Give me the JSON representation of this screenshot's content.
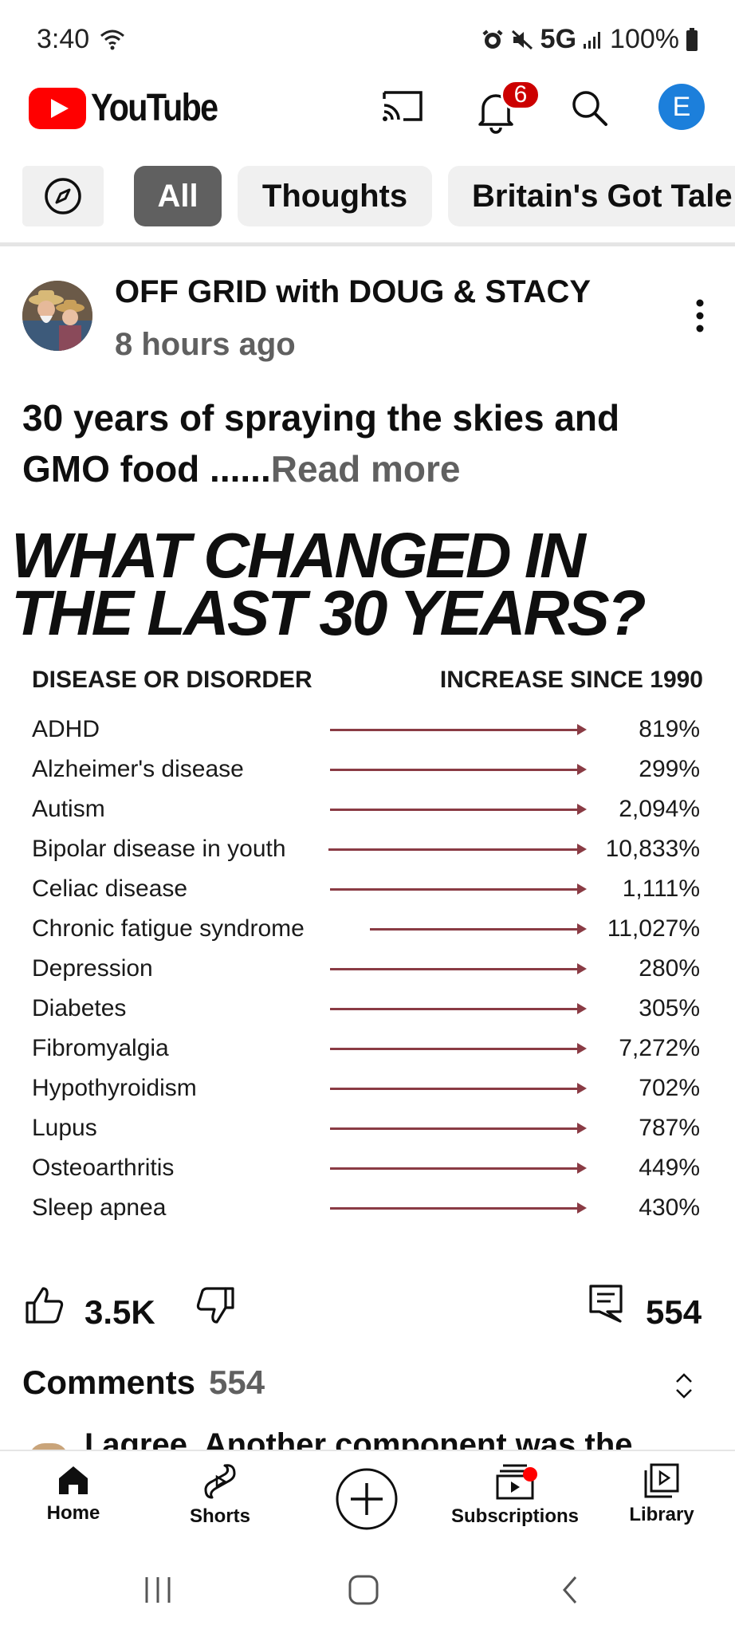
{
  "status_bar": {
    "time": "3:40",
    "network": "5G",
    "battery": "100%"
  },
  "header": {
    "app_name": "YouTube",
    "notification_count": "6",
    "avatar_letter": "E",
    "colors": {
      "brand_red": "#ff0000",
      "avatar_blue": "#1c7fdb",
      "badge_red": "#cc0000"
    }
  },
  "chips": [
    {
      "label": "All"
    },
    {
      "label": "Thoughts"
    },
    {
      "label": "Britain's Got Tale"
    }
  ],
  "post": {
    "channel": "OFF GRID with DOUG & STACY",
    "time_ago": "8 hours ago",
    "text": "30 years of spraying the skies and GMO food ......",
    "read_more": "Read more"
  },
  "infographic": {
    "title_line1": "WHAT CHANGED IN",
    "title_line2": "THE LAST 30 YEARS?",
    "col_left": "DISEASE OR DISORDER",
    "col_right": "INCREASE SINCE 1990",
    "rows": [
      {
        "name": "ADHD",
        "value": "819%"
      },
      {
        "name": "Alzheimer's disease",
        "value": "299%"
      },
      {
        "name": "Autism",
        "value": "2,094%"
      },
      {
        "name": "Bipolar disease in youth",
        "value": "10,833%"
      },
      {
        "name": "Celiac disease",
        "value": "1,111%"
      },
      {
        "name": "Chronic fatigue syndrome",
        "value": "11,027%"
      },
      {
        "name": "Depression",
        "value": "280%"
      },
      {
        "name": "Diabetes",
        "value": "305%"
      },
      {
        "name": "Fibromyalgia",
        "value": "7,272%"
      },
      {
        "name": "Hypothyroidism",
        "value": "702%"
      },
      {
        "name": "Lupus",
        "value": "787%"
      },
      {
        "name": "Osteoarthritis",
        "value": "449%"
      },
      {
        "name": "Sleep apnea",
        "value": "430%"
      }
    ],
    "arrow_color": "#8a3b44"
  },
  "actions": {
    "likes": "3.5K",
    "comments": "554"
  },
  "comments": {
    "heading": "Comments",
    "count": "554",
    "preview": "I agree. Another component was the"
  },
  "bottom_nav": {
    "home": "Home",
    "shorts": "Shorts",
    "subscriptions": "Subscriptions",
    "library": "Library"
  }
}
